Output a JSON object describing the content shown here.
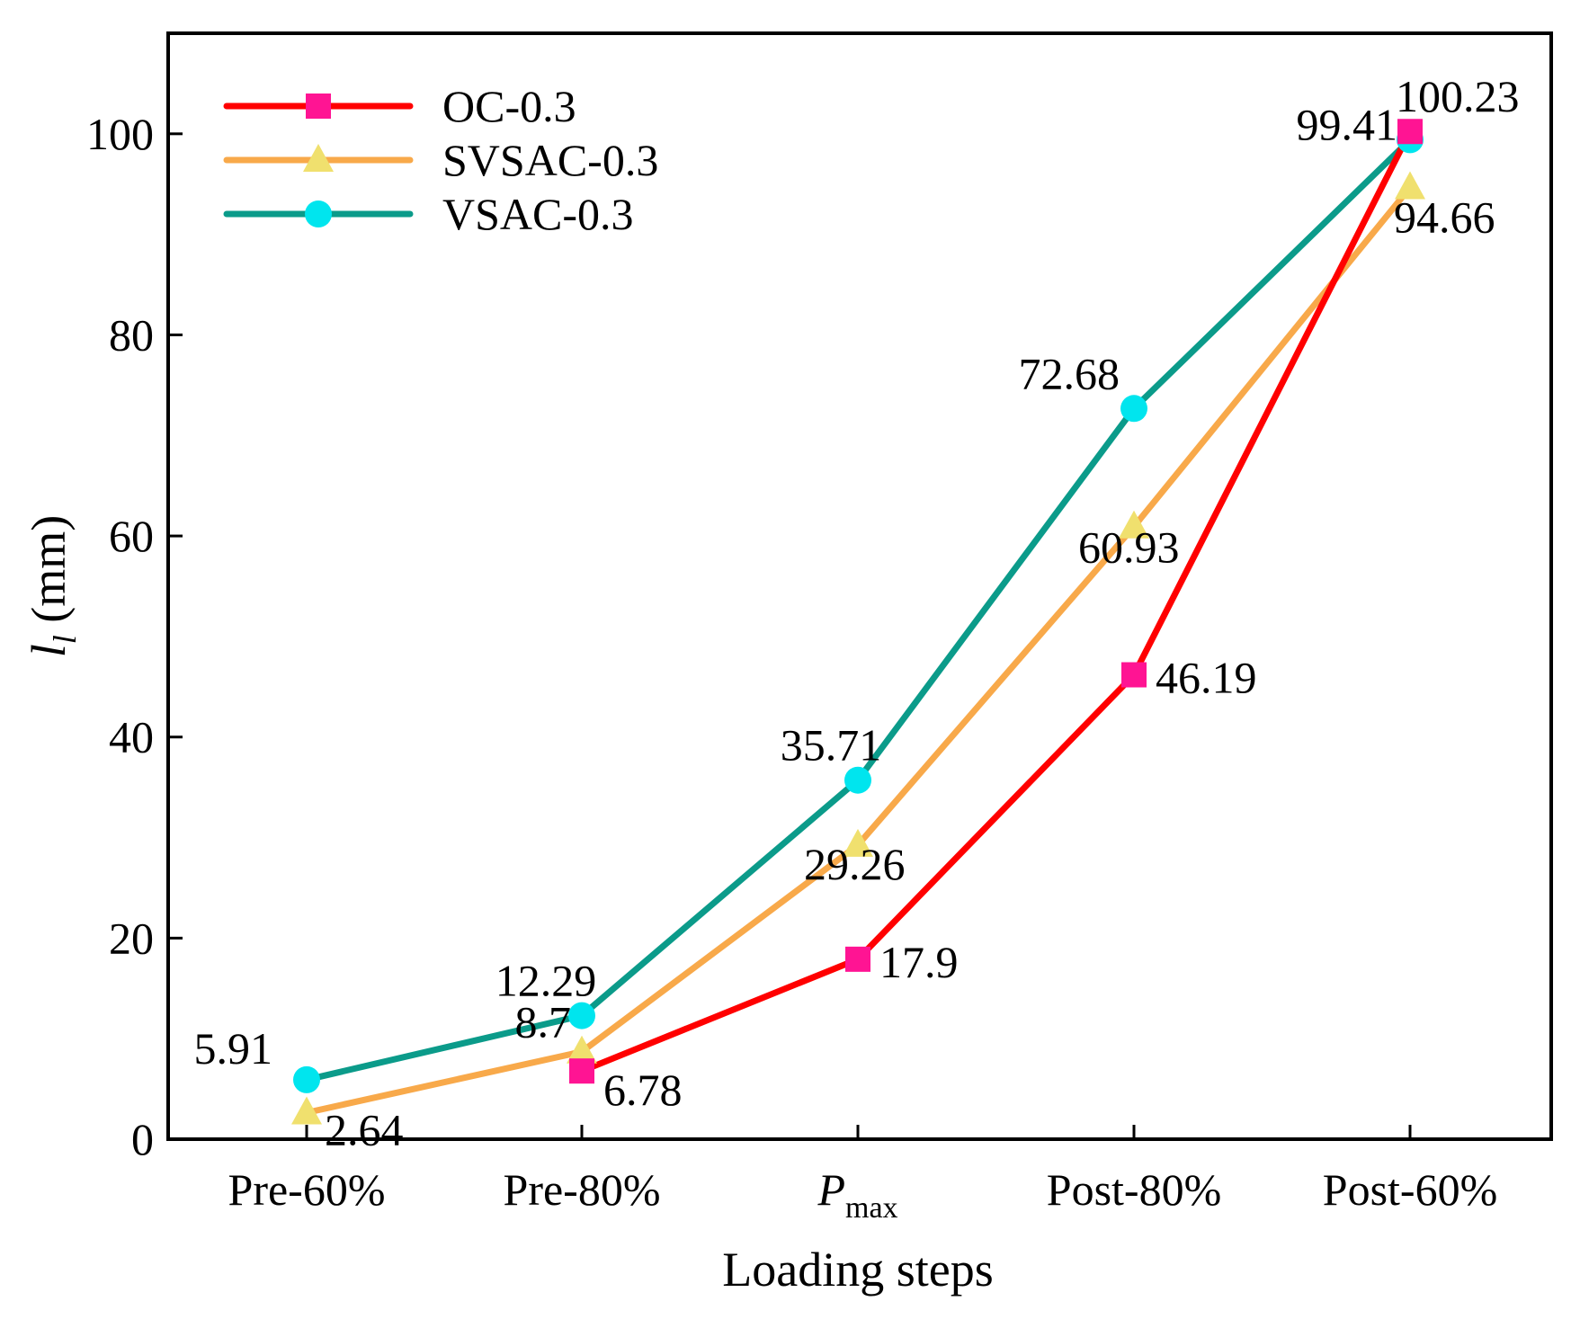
{
  "chart_data": {
    "type": "line",
    "title": "",
    "xlabel": "Loading steps",
    "ylabel": {
      "main": "l",
      "sub": "l",
      "unit": "(mm)"
    },
    "categories": [
      {
        "main": "Pre-60%",
        "sub": ""
      },
      {
        "main": "Pre-80%",
        "sub": ""
      },
      {
        "main": "P",
        "sub": "max"
      },
      {
        "main": "Post-80%",
        "sub": ""
      },
      {
        "main": "Post-60%",
        "sub": ""
      }
    ],
    "ylim": [
      0,
      110
    ],
    "yticks": [
      0,
      20,
      40,
      60,
      80,
      100
    ],
    "legend_position": "top-left",
    "series": [
      {
        "name": "OC-0.3",
        "color": "#ff0000",
        "marker": "square",
        "marker_color": "#ff1493",
        "values": [
          null,
          6.78,
          17.9,
          46.19,
          100.23
        ],
        "labels": [
          null,
          "6.78",
          "17.9",
          "46.19",
          "100.23"
        ]
      },
      {
        "name": "SVSAC-0.3",
        "color": "#f8a94a",
        "marker": "triangle",
        "marker_color": "#f0e06e",
        "values": [
          2.64,
          8.7,
          29.26,
          60.93,
          94.66
        ],
        "labels": [
          "2.64",
          "8.7",
          "29.26",
          "60.93",
          "94.66"
        ]
      },
      {
        "name": "VSAC-0.3",
        "color": "#0b9b8a",
        "marker": "circle",
        "marker_color": "#00e5ee",
        "values": [
          5.91,
          12.29,
          35.71,
          72.68,
          99.41
        ],
        "labels": [
          "5.91",
          "12.29",
          "35.71",
          "72.68",
          "99.41"
        ]
      }
    ]
  }
}
